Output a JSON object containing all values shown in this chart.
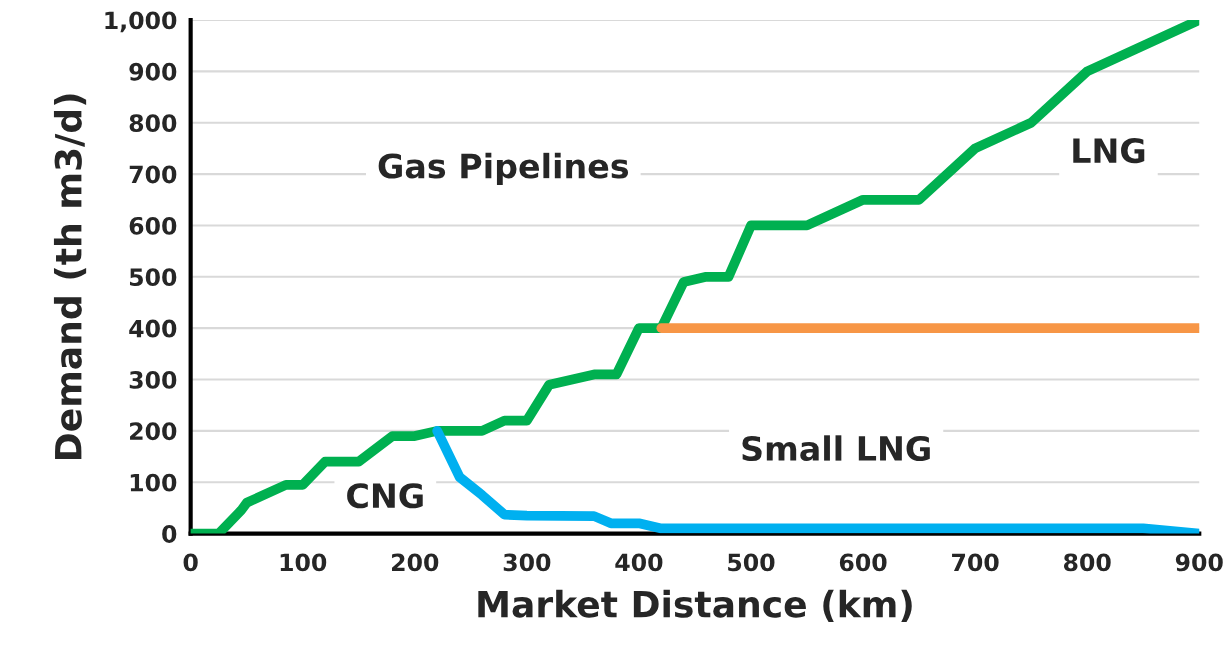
{
  "chart_data": {
    "type": "line",
    "xlabel": "Market Distance (km)",
    "ylabel": "Demand (th m3/d)",
    "series": [
      {
        "color": "#00b050",
        "x": [
          0,
          25,
          45,
          50,
          85,
          100,
          120,
          150,
          180,
          200,
          220,
          260,
          280,
          300,
          320,
          360,
          380,
          400,
          420,
          440,
          460,
          480,
          500,
          550,
          600,
          650,
          700,
          750,
          800,
          900
        ],
        "values": [
          0,
          0,
          45,
          60,
          95,
          95,
          140,
          140,
          190,
          190,
          200,
          200,
          220,
          220,
          290,
          310,
          310,
          400,
          400,
          490,
          500,
          500,
          600,
          600,
          650,
          650,
          750,
          800,
          900,
          1000
        ]
      },
      {
        "color": "#00b0f0",
        "x": [
          220,
          240,
          260,
          280,
          300,
          360,
          375,
          400,
          420,
          850,
          900
        ],
        "values": [
          200,
          110,
          75,
          37,
          35,
          34,
          20,
          20,
          10,
          10,
          0
        ]
      },
      {
        "color": "#f79646",
        "x": [
          420,
          900
        ],
        "values": [
          400,
          400
        ]
      }
    ],
    "annotations": [
      "Gas Pipelines",
      "LNG",
      "Small LNG",
      "CNG"
    ],
    "xlim": [
      0,
      900
    ],
    "xticks": [
      0,
      100,
      200,
      300,
      400,
      500,
      600,
      700,
      800,
      900
    ],
    "ylim": [
      0,
      1000
    ],
    "yticks": [
      0,
      100,
      200,
      300,
      400,
      500,
      600,
      700,
      800,
      900,
      {
        "value": 1000,
        "label": "1,000"
      }
    ],
    "grid": "y",
    "legend": false
  }
}
